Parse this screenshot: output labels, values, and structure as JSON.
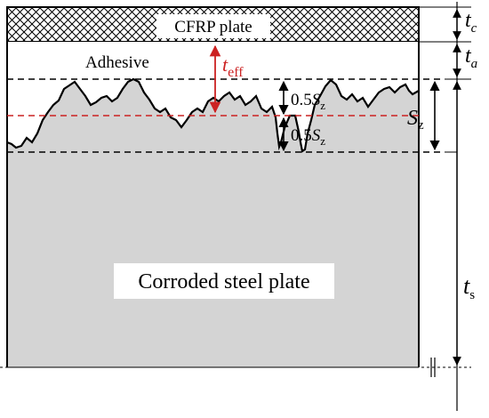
{
  "labels": {
    "cfrp_plate": "CFRP plate",
    "adhesive": "Adhesive",
    "corroded_steel_plate": "Corroded steel plate",
    "t_eff_main": "t",
    "t_eff_sub": "eff",
    "half_sz_upper_num": "0.5",
    "half_sz_upper_var": "S",
    "half_sz_upper_sub": "z",
    "half_sz_lower_num": "0.5",
    "half_sz_lower_var": "S",
    "half_sz_lower_sub": "z",
    "sz_main": "S",
    "sz_sub": "z",
    "tc_main": "t",
    "tc_sub": "c",
    "ta_main": "t",
    "ta_sub": "a",
    "ts_main": "t",
    "ts_sub": "s"
  },
  "colors": {
    "steel_fill": "#d4d4d4",
    "mean_line": "#cc2222",
    "t_eff_arrow": "#cc2222",
    "outline": "#000000",
    "background": "#ffffff"
  },
  "icons": {
    "cfrp_hatch": "diagonal-crosshatch",
    "break_mark": "double-slash-break"
  }
}
